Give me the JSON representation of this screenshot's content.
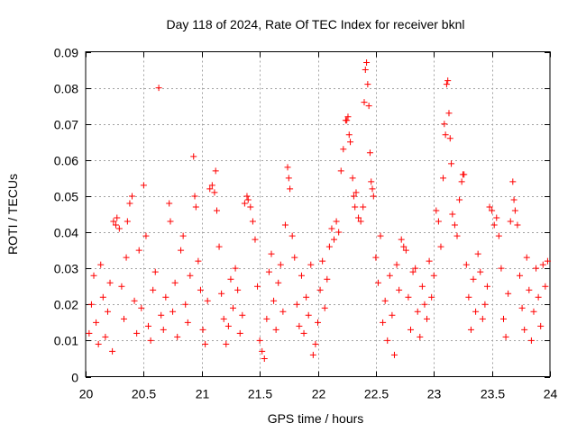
{
  "chart_data": {
    "type": "scatter",
    "title": "Day 118 of 2024, Rate Of TEC Index for receiver bknl",
    "xlabel": "GPS time / hours",
    "ylabel": "ROTI / TECUs",
    "xlim": [
      20,
      24
    ],
    "ylim": [
      0,
      0.09
    ],
    "x_ticks": [
      20,
      20.5,
      21,
      21.5,
      22,
      22.5,
      23,
      23.5,
      24
    ],
    "x_tick_labels": [
      "20",
      "20.5",
      "21",
      "21.5",
      "22",
      "22.5",
      "23",
      "23.5",
      "24"
    ],
    "y_ticks": [
      0,
      0.01,
      0.02,
      0.03,
      0.04,
      0.05,
      0.06,
      0.07,
      0.08,
      0.09
    ],
    "y_tick_labels": [
      "0",
      "0.01",
      "0.02",
      "0.03",
      "0.04",
      "0.05",
      "0.06",
      "0.07",
      "0.08",
      "0.09"
    ],
    "grid": true,
    "marker": "plus",
    "color": "#ff0000",
    "series": [
      {
        "name": "ROTI",
        "points": [
          [
            20.03,
            0.012
          ],
          [
            20.05,
            0.02
          ],
          [
            20.07,
            0.028
          ],
          [
            20.09,
            0.015
          ],
          [
            20.11,
            0.009
          ],
          [
            20.13,
            0.031
          ],
          [
            20.15,
            0.022
          ],
          [
            20.17,
            0.011
          ],
          [
            20.19,
            0.018
          ],
          [
            20.21,
            0.026
          ],
          [
            20.23,
            0.007
          ],
          [
            20.24,
            0.043
          ],
          [
            20.26,
            0.042
          ],
          [
            20.27,
            0.044
          ],
          [
            20.29,
            0.041
          ],
          [
            20.31,
            0.025
          ],
          [
            20.33,
            0.016
          ],
          [
            20.35,
            0.033
          ],
          [
            20.36,
            0.043
          ],
          [
            20.38,
            0.048
          ],
          [
            20.4,
            0.05
          ],
          [
            20.42,
            0.021
          ],
          [
            20.44,
            0.012
          ],
          [
            20.46,
            0.035
          ],
          [
            20.48,
            0.019
          ],
          [
            20.5,
            0.053
          ],
          [
            20.52,
            0.039
          ],
          [
            20.54,
            0.014
          ],
          [
            20.56,
            0.01
          ],
          [
            20.58,
            0.024
          ],
          [
            20.6,
            0.029
          ],
          [
            20.63,
            0.08
          ],
          [
            20.65,
            0.017
          ],
          [
            20.67,
            0.013
          ],
          [
            20.69,
            0.022
          ],
          [
            20.72,
            0.048
          ],
          [
            20.73,
            0.043
          ],
          [
            20.75,
            0.018
          ],
          [
            20.77,
            0.026
          ],
          [
            20.79,
            0.011
          ],
          [
            20.82,
            0.035
          ],
          [
            20.84,
            0.039
          ],
          [
            20.86,
            0.02
          ],
          [
            20.88,
            0.015
          ],
          [
            20.9,
            0.028
          ],
          [
            20.93,
            0.061
          ],
          [
            20.94,
            0.05
          ],
          [
            20.95,
            0.047
          ],
          [
            20.97,
            0.032
          ],
          [
            20.99,
            0.024
          ],
          [
            21.01,
            0.013
          ],
          [
            21.03,
            0.009
          ],
          [
            21.05,
            0.021
          ],
          [
            21.07,
            0.052
          ],
          [
            21.09,
            0.053
          ],
          [
            21.11,
            0.051
          ],
          [
            21.12,
            0.057
          ],
          [
            21.13,
            0.046
          ],
          [
            21.15,
            0.036
          ],
          [
            21.17,
            0.023
          ],
          [
            21.19,
            0.016
          ],
          [
            21.21,
            0.009
          ],
          [
            21.23,
            0.014
          ],
          [
            21.25,
            0.027
          ],
          [
            21.27,
            0.019
          ],
          [
            21.29,
            0.03
          ],
          [
            21.31,
            0.024
          ],
          [
            21.33,
            0.012
          ],
          [
            21.35,
            0.017
          ],
          [
            21.37,
            0.048
          ],
          [
            21.39,
            0.05
          ],
          [
            21.4,
            0.049
          ],
          [
            21.42,
            0.047
          ],
          [
            21.44,
            0.043
          ],
          [
            21.46,
            0.038
          ],
          [
            21.48,
            0.025
          ],
          [
            21.5,
            0.01
          ],
          [
            21.52,
            0.007
          ],
          [
            21.54,
            0.005
          ],
          [
            21.56,
            0.016
          ],
          [
            21.58,
            0.029
          ],
          [
            21.6,
            0.034
          ],
          [
            21.62,
            0.021
          ],
          [
            21.64,
            0.013
          ],
          [
            21.66,
            0.026
          ],
          [
            21.68,
            0.031
          ],
          [
            21.7,
            0.018
          ],
          [
            21.72,
            0.042
          ],
          [
            21.74,
            0.058
          ],
          [
            21.75,
            0.055
          ],
          [
            21.76,
            0.052
          ],
          [
            21.78,
            0.039
          ],
          [
            21.8,
            0.033
          ],
          [
            21.82,
            0.02
          ],
          [
            21.84,
            0.014
          ],
          [
            21.86,
            0.028
          ],
          [
            21.88,
            0.012
          ],
          [
            21.9,
            0.022
          ],
          [
            21.92,
            0.017
          ],
          [
            21.94,
            0.031
          ],
          [
            21.96,
            0.006
          ],
          [
            21.98,
            0.009
          ],
          [
            22.0,
            0.015
          ],
          [
            22.02,
            0.024
          ],
          [
            22.04,
            0.032
          ],
          [
            22.06,
            0.019
          ],
          [
            22.08,
            0.027
          ],
          [
            22.1,
            0.036
          ],
          [
            22.12,
            0.041
          ],
          [
            22.14,
            0.038
          ],
          [
            22.16,
            0.043
          ],
          [
            22.18,
            0.04
          ],
          [
            22.2,
            0.057
          ],
          [
            22.22,
            0.063
          ],
          [
            22.24,
            0.071
          ],
          [
            22.25,
            0.071
          ],
          [
            22.26,
            0.072
          ],
          [
            22.27,
            0.067
          ],
          [
            22.28,
            0.065
          ],
          [
            22.3,
            0.055
          ],
          [
            22.31,
            0.05
          ],
          [
            22.32,
            0.047
          ],
          [
            22.33,
            0.051
          ],
          [
            22.35,
            0.044
          ],
          [
            22.37,
            0.043
          ],
          [
            22.39,
            0.047
          ],
          [
            22.4,
            0.076
          ],
          [
            22.41,
            0.085
          ],
          [
            22.42,
            0.087
          ],
          [
            22.43,
            0.081
          ],
          [
            22.44,
            0.075
          ],
          [
            22.45,
            0.062
          ],
          [
            22.46,
            0.054
          ],
          [
            22.47,
            0.052
          ],
          [
            22.48,
            0.05
          ],
          [
            22.5,
            0.033
          ],
          [
            22.52,
            0.026
          ],
          [
            22.54,
            0.039
          ],
          [
            22.56,
            0.015
          ],
          [
            22.58,
            0.021
          ],
          [
            22.6,
            0.01
          ],
          [
            22.62,
            0.028
          ],
          [
            22.64,
            0.017
          ],
          [
            22.66,
            0.006
          ],
          [
            22.68,
            0.031
          ],
          [
            22.7,
            0.024
          ],
          [
            22.72,
            0.038
          ],
          [
            22.74,
            0.036
          ],
          [
            22.76,
            0.035
          ],
          [
            22.78,
            0.022
          ],
          [
            22.8,
            0.013
          ],
          [
            22.82,
            0.029
          ],
          [
            22.84,
            0.03
          ],
          [
            22.86,
            0.018
          ],
          [
            22.88,
            0.011
          ],
          [
            22.9,
            0.025
          ],
          [
            22.92,
            0.02
          ],
          [
            22.94,
            0.016
          ],
          [
            22.96,
            0.032
          ],
          [
            22.98,
            0.022
          ],
          [
            23.0,
            0.028
          ],
          [
            23.02,
            0.046
          ],
          [
            23.04,
            0.043
          ],
          [
            23.06,
            0.036
          ],
          [
            23.08,
            0.055
          ],
          [
            23.09,
            0.07
          ],
          [
            23.1,
            0.067
          ],
          [
            23.11,
            0.081
          ],
          [
            23.12,
            0.082
          ],
          [
            23.13,
            0.073
          ],
          [
            23.14,
            0.066
          ],
          [
            23.15,
            0.059
          ],
          [
            23.16,
            0.045
          ],
          [
            23.18,
            0.042
          ],
          [
            23.2,
            0.039
          ],
          [
            23.22,
            0.049
          ],
          [
            23.24,
            0.054
          ],
          [
            23.25,
            0.056
          ],
          [
            23.26,
            0.056
          ],
          [
            23.28,
            0.031
          ],
          [
            23.3,
            0.022
          ],
          [
            23.32,
            0.013
          ],
          [
            23.34,
            0.027
          ],
          [
            23.36,
            0.018
          ],
          [
            23.38,
            0.034
          ],
          [
            23.4,
            0.029
          ],
          [
            23.42,
            0.016
          ],
          [
            23.44,
            0.02
          ],
          [
            23.46,
            0.025
          ],
          [
            23.48,
            0.047
          ],
          [
            23.5,
            0.046
          ],
          [
            23.52,
            0.042
          ],
          [
            23.54,
            0.044
          ],
          [
            23.56,
            0.039
          ],
          [
            23.58,
            0.03
          ],
          [
            23.6,
            0.016
          ],
          [
            23.62,
            0.011
          ],
          [
            23.64,
            0.023
          ],
          [
            23.66,
            0.043
          ],
          [
            23.68,
            0.054
          ],
          [
            23.69,
            0.049
          ],
          [
            23.7,
            0.046
          ],
          [
            23.72,
            0.042
          ],
          [
            23.74,
            0.028
          ],
          [
            23.76,
            0.019
          ],
          [
            23.78,
            0.013
          ],
          [
            23.8,
            0.033
          ],
          [
            23.82,
            0.024
          ],
          [
            23.84,
            0.01
          ],
          [
            23.86,
            0.018
          ],
          [
            23.88,
            0.03
          ],
          [
            23.9,
            0.022
          ],
          [
            23.92,
            0.014
          ],
          [
            23.94,
            0.031
          ],
          [
            23.96,
            0.025
          ],
          [
            23.98,
            0.032
          ]
        ]
      }
    ]
  }
}
